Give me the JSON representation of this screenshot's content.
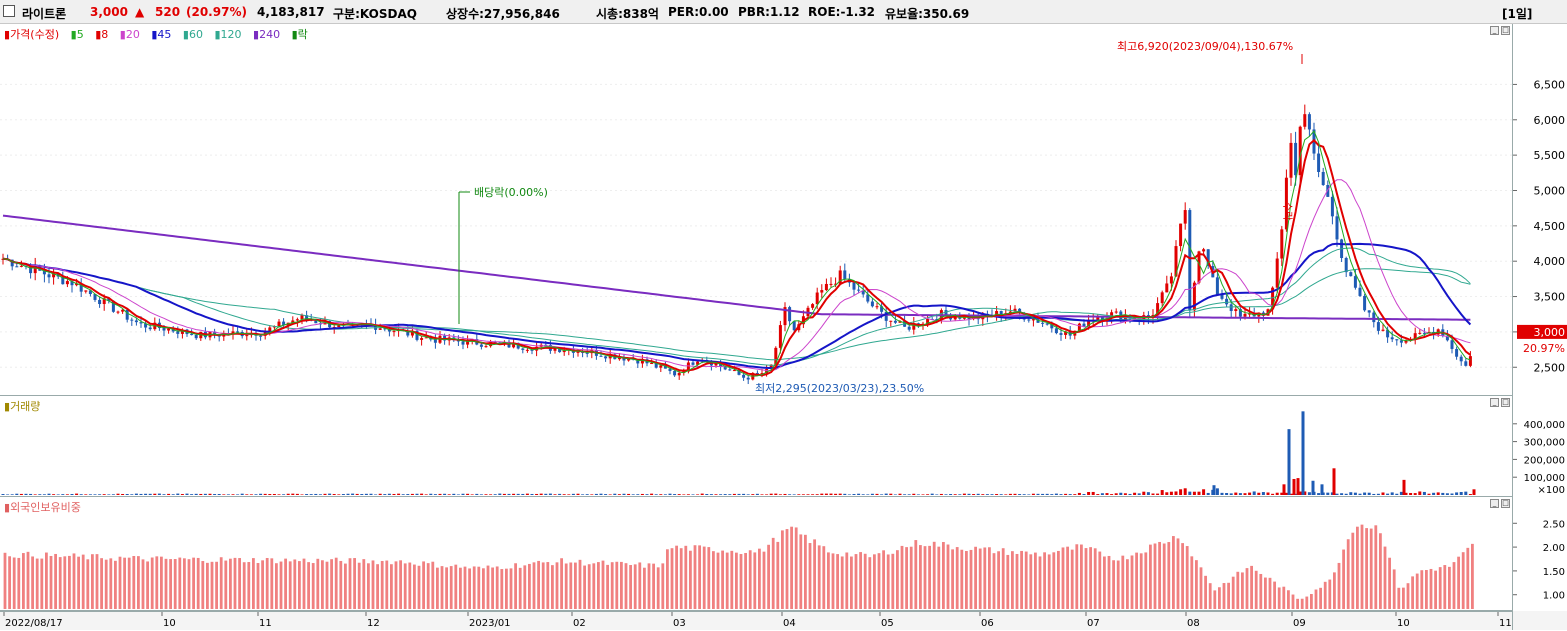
{
  "header": {
    "stock_name": "라이트론",
    "price": "3,000",
    "change_arrow": "▲",
    "change": "520",
    "change_pct": "(20.97%)",
    "volume": "4,183,817",
    "market": "구분:KOSDAQ",
    "shares": "상장수:27,956,846",
    "market_cap": "시총:838억",
    "per": "PER:0.00",
    "pbr": "PBR:1.12",
    "roe": "ROE:-1.32",
    "reserve": "유보율:350.69",
    "period": "[1일]",
    "colors": {
      "up": "#e00000",
      "down": "#1e5bb4",
      "text": "#000000"
    }
  },
  "price_legend": {
    "price_label": "가격(수정)",
    "ma": [
      {
        "label": "5",
        "color": "#22aa22"
      },
      {
        "label": "8",
        "color": "#e00000"
      },
      {
        "label": "20",
        "color": "#cc44cc"
      },
      {
        "label": "45",
        "color": "#1515c8"
      },
      {
        "label": "60",
        "color": "#30a890"
      },
      {
        "label": "120",
        "color": "#30a890"
      },
      {
        "label": "240",
        "color": "#7a2cc0"
      }
    ],
    "div_label": "락"
  },
  "volume_legend": "거래량",
  "foreign_legend": "외국인보유비중",
  "annotations": {
    "high": "최고6,920(2023/09/04),130.67%",
    "low": "최저2,295(2023/03/23),23.50%",
    "dividend": "배당락(0.00%)",
    "rights": "수락",
    "current_price": "3,000",
    "current_pct": "20.97%",
    "volume_unit": "×100"
  },
  "chart_data": [
    {
      "type": "candlestick",
      "title": "가격(수정)",
      "x_ticks": [
        "2022/08/17",
        "10",
        "11",
        "12",
        "2023/01",
        "02",
        "03",
        "04",
        "05",
        "06",
        "07",
        "08",
        "09",
        "10",
        "11"
      ],
      "y_ticks": [
        "2,500",
        "3,000",
        "3,500",
        "4,000",
        "4,500",
        "5,000",
        "5,500",
        "6,000",
        "6,500"
      ],
      "ylim": [
        2150,
        7100
      ],
      "approx_close_by_month": [
        {
          "x": "2022/08/17",
          "close": 4050
        },
        {
          "x": "09",
          "close": 3700
        },
        {
          "x": "10",
          "close": 3050
        },
        {
          "x": "11",
          "close": 3000
        },
        {
          "x": "12",
          "close": 3100
        },
        {
          "x": "2023/01",
          "close": 2850
        },
        {
          "x": "02",
          "close": 2750
        },
        {
          "x": "03",
          "close": 2400
        },
        {
          "x": "04",
          "close": 3300
        },
        {
          "x": "05",
          "close": 3250
        },
        {
          "x": "06",
          "close": 3200
        },
        {
          "x": "07",
          "close": 3200
        },
        {
          "x": "08",
          "close": 3300
        },
        {
          "x": "09",
          "close": 5100
        },
        {
          "x": "10",
          "close": 2900
        },
        {
          "x": "11",
          "close": 3000
        }
      ]
    },
    {
      "type": "bar",
      "title": "거래량",
      "y_ticks": [
        "100,000",
        "200,000",
        "300,000",
        "400,000"
      ],
      "ylim": [
        0,
        500000
      ],
      "peaks": [
        {
          "x": "09",
          "value": 470000
        },
        {
          "x": "09",
          "value": 370000
        },
        {
          "x": "09",
          "value": 150000
        }
      ]
    },
    {
      "type": "bar",
      "title": "외국인보유비중",
      "y_ticks": [
        "1.00",
        "1.50",
        "2.00",
        "2.50"
      ],
      "ylim": [
        0.7,
        2.8
      ]
    }
  ]
}
